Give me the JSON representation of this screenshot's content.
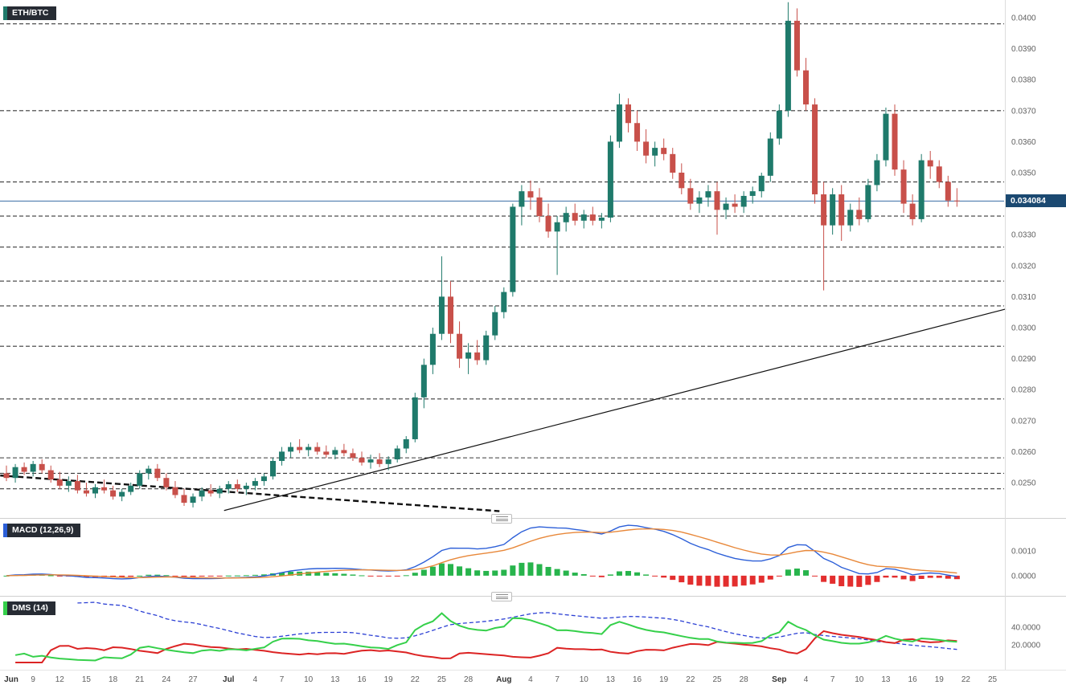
{
  "colors": {
    "up": "#1f7a6b",
    "down": "#c8504a",
    "macd_line": "#2c5fd8",
    "signal_line": "#e8883a",
    "hist_up": "#27b44c",
    "hist_down": "#e32e2e",
    "plus_di": "#35d04a",
    "minus_di": "#dc2424",
    "adx": "#2b3fd4",
    "price_line": "#3a6ea5",
    "price_tag_bg": "#1b4971",
    "level_line": "#3a3a3a",
    "trend_line": "#111111",
    "label_bg": "#272c34",
    "axis_text": "#5f5f5f",
    "chip_symbol": "#1f7a6b",
    "chip_macd": "#2c5fd8",
    "chip_dms": "#35d04a"
  },
  "chart_data": {
    "type": "candlestick",
    "symbol": "ETH/BTC",
    "y_axis": {
      "ticks": [
        "0.0400",
        "0.0390",
        "0.0380",
        "0.0370",
        "0.0360",
        "0.0350",
        "0.0330",
        "0.0320",
        "0.0310",
        "0.0300",
        "0.0290",
        "0.0280",
        "0.0270",
        "0.0260",
        "0.0250"
      ],
      "current_price": 0.034084,
      "current_price_label": "0.034084"
    },
    "x_axis": {
      "labels": [
        {
          "t": "Jun",
          "d": 0,
          "m": true
        },
        {
          "t": "9",
          "d": 3
        },
        {
          "t": "12",
          "d": 6
        },
        {
          "t": "15",
          "d": 9
        },
        {
          "t": "18",
          "d": 12
        },
        {
          "t": "21",
          "d": 15
        },
        {
          "t": "24",
          "d": 18
        },
        {
          "t": "27",
          "d": 21
        },
        {
          "t": "Jul",
          "d": 25,
          "m": true
        },
        {
          "t": "4",
          "d": 28
        },
        {
          "t": "7",
          "d": 31
        },
        {
          "t": "10",
          "d": 34
        },
        {
          "t": "13",
          "d": 37
        },
        {
          "t": "16",
          "d": 40
        },
        {
          "t": "19",
          "d": 43
        },
        {
          "t": "22",
          "d": 46
        },
        {
          "t": "25",
          "d": 49
        },
        {
          "t": "28",
          "d": 52
        },
        {
          "t": "Aug",
          "d": 56,
          "m": true
        },
        {
          "t": "4",
          "d": 59
        },
        {
          "t": "7",
          "d": 62
        },
        {
          "t": "10",
          "d": 65
        },
        {
          "t": "13",
          "d": 68
        },
        {
          "t": "16",
          "d": 71
        },
        {
          "t": "19",
          "d": 74
        },
        {
          "t": "22",
          "d": 77
        },
        {
          "t": "25",
          "d": 80
        },
        {
          "t": "28",
          "d": 83
        },
        {
          "t": "Sep",
          "d": 87,
          "m": true
        },
        {
          "t": "4",
          "d": 90
        },
        {
          "t": "7",
          "d": 93
        },
        {
          "t": "10",
          "d": 96
        },
        {
          "t": "13",
          "d": 99
        },
        {
          "t": "16",
          "d": 102
        },
        {
          "t": "19",
          "d": 105
        },
        {
          "t": "22",
          "d": 108
        },
        {
          "t": "25",
          "d": 111
        }
      ]
    },
    "levels": [
      0.0398,
      0.037,
      0.0347,
      0.0336,
      0.0326,
      0.0315,
      0.0307,
      0.0294,
      0.0277,
      0.0258,
      0.0253,
      0.0248
    ],
    "trendlines": [
      {
        "style": "solid",
        "from": [
          24.5,
          0.0241
        ],
        "to": [
          112.5,
          0.0306
        ]
      },
      {
        "style": "dashed",
        "from": [
          -0.7,
          0.02523
        ],
        "to": [
          55.5,
          0.02408
        ]
      }
    ],
    "indicators": {
      "macd": {
        "label": "MACD (12,26,9)",
        "fast": 12,
        "slow": 26,
        "signal": 9,
        "ticks": [
          "0.0010",
          "0.0000"
        ]
      },
      "dms": {
        "label": "DMS (14)",
        "period": 14,
        "ticks": [
          "40.0000",
          "20.0000"
        ]
      }
    },
    "candles": [
      [
        0.0253,
        0.02555,
        0.02505,
        0.02515
      ],
      [
        0.02515,
        0.0256,
        0.025,
        0.0255
      ],
      [
        0.0255,
        0.02565,
        0.02525,
        0.02535
      ],
      [
        0.02535,
        0.0257,
        0.0252,
        0.0256
      ],
      [
        0.0256,
        0.02575,
        0.0253,
        0.0254
      ],
      [
        0.0254,
        0.02555,
        0.025,
        0.0251
      ],
      [
        0.0251,
        0.02535,
        0.0248,
        0.0249
      ],
      [
        0.0249,
        0.0252,
        0.0247,
        0.02505
      ],
      [
        0.02505,
        0.02525,
        0.02465,
        0.02475
      ],
      [
        0.02475,
        0.025,
        0.02455,
        0.02465
      ],
      [
        0.02465,
        0.02495,
        0.0245,
        0.02485
      ],
      [
        0.02485,
        0.0251,
        0.02465,
        0.02475
      ],
      [
        0.02475,
        0.0249,
        0.02445,
        0.02455
      ],
      [
        0.02455,
        0.0248,
        0.0244,
        0.0247
      ],
      [
        0.0247,
        0.025,
        0.0246,
        0.0249
      ],
      [
        0.0249,
        0.0254,
        0.0248,
        0.0253
      ],
      [
        0.0253,
        0.02555,
        0.0251,
        0.02545
      ],
      [
        0.02545,
        0.0256,
        0.02505,
        0.02515
      ],
      [
        0.02515,
        0.0253,
        0.02475,
        0.02485
      ],
      [
        0.02485,
        0.02505,
        0.0245,
        0.0246
      ],
      [
        0.0246,
        0.0248,
        0.02425,
        0.02435
      ],
      [
        0.02435,
        0.02465,
        0.0242,
        0.02455
      ],
      [
        0.02455,
        0.02485,
        0.0244,
        0.02475
      ],
      [
        0.02475,
        0.02495,
        0.02455,
        0.02465
      ],
      [
        0.02465,
        0.0249,
        0.0245,
        0.0248
      ],
      [
        0.0248,
        0.02505,
        0.02465,
        0.02495
      ],
      [
        0.02495,
        0.0251,
        0.0247,
        0.0248
      ],
      [
        0.0248,
        0.025,
        0.0246,
        0.0249
      ],
      [
        0.0249,
        0.02515,
        0.02475,
        0.02505
      ],
      [
        0.02505,
        0.0253,
        0.0249,
        0.0252
      ],
      [
        0.0252,
        0.0258,
        0.0251,
        0.0257
      ],
      [
        0.0257,
        0.02615,
        0.02555,
        0.026
      ],
      [
        0.026,
        0.0263,
        0.0258,
        0.02615
      ],
      [
        0.02615,
        0.0264,
        0.02595,
        0.02605
      ],
      [
        0.02605,
        0.02625,
        0.02585,
        0.02615
      ],
      [
        0.02615,
        0.0263,
        0.0259,
        0.026
      ],
      [
        0.026,
        0.0262,
        0.0258,
        0.0259
      ],
      [
        0.0259,
        0.02615,
        0.02575,
        0.02605
      ],
      [
        0.02605,
        0.02625,
        0.02585,
        0.02595
      ],
      [
        0.02595,
        0.0261,
        0.0257,
        0.0258
      ],
      [
        0.0258,
        0.026,
        0.02555,
        0.02565
      ],
      [
        0.02565,
        0.0259,
        0.02545,
        0.02575
      ],
      [
        0.02575,
        0.02595,
        0.0255,
        0.0256
      ],
      [
        0.0256,
        0.02585,
        0.0254,
        0.02575
      ],
      [
        0.02575,
        0.0262,
        0.02565,
        0.0261
      ],
      [
        0.0261,
        0.0265,
        0.02595,
        0.0264
      ],
      [
        0.0264,
        0.0279,
        0.0263,
        0.02775
      ],
      [
        0.02775,
        0.029,
        0.0274,
        0.0288
      ],
      [
        0.0288,
        0.03,
        0.0285,
        0.0298
      ],
      [
        0.0298,
        0.0323,
        0.0296,
        0.031
      ],
      [
        0.031,
        0.0315,
        0.0295,
        0.0298
      ],
      [
        0.0298,
        0.0302,
        0.0287,
        0.029
      ],
      [
        0.029,
        0.0295,
        0.0285,
        0.0292
      ],
      [
        0.0292,
        0.0296,
        0.0288,
        0.02895
      ],
      [
        0.02895,
        0.0299,
        0.0288,
        0.02975
      ],
      [
        0.02975,
        0.0307,
        0.0296,
        0.0305
      ],
      [
        0.0305,
        0.0313,
        0.0303,
        0.03115
      ],
      [
        0.03115,
        0.034,
        0.031,
        0.0339
      ],
      [
        0.0339,
        0.0346,
        0.0333,
        0.0344
      ],
      [
        0.0344,
        0.03475,
        0.0338,
        0.0342
      ],
      [
        0.0342,
        0.0345,
        0.0334,
        0.0336
      ],
      [
        0.0336,
        0.034,
        0.0329,
        0.0331
      ],
      [
        0.0331,
        0.0336,
        0.0317,
        0.0334
      ],
      [
        0.0334,
        0.0339,
        0.0331,
        0.0337
      ],
      [
        0.0337,
        0.034,
        0.0333,
        0.03345
      ],
      [
        0.03345,
        0.0338,
        0.0332,
        0.03365
      ],
      [
        0.03365,
        0.0339,
        0.0333,
        0.03345
      ],
      [
        0.03345,
        0.0337,
        0.0332,
        0.03355
      ],
      [
        0.03355,
        0.0362,
        0.0334,
        0.036
      ],
      [
        0.036,
        0.03755,
        0.0358,
        0.0372
      ],
      [
        0.0372,
        0.0374,
        0.0363,
        0.0366
      ],
      [
        0.0366,
        0.037,
        0.0357,
        0.036
      ],
      [
        0.036,
        0.0364,
        0.0353,
        0.03555
      ],
      [
        0.03555,
        0.036,
        0.0352,
        0.0358
      ],
      [
        0.0358,
        0.0361,
        0.0354,
        0.0356
      ],
      [
        0.0356,
        0.0358,
        0.0348,
        0.035
      ],
      [
        0.035,
        0.0353,
        0.0343,
        0.0345
      ],
      [
        0.0345,
        0.0348,
        0.0338,
        0.034
      ],
      [
        0.034,
        0.0344,
        0.0337,
        0.0342
      ],
      [
        0.0342,
        0.0346,
        0.0339,
        0.0344
      ],
      [
        0.0344,
        0.0347,
        0.033,
        0.0338
      ],
      [
        0.0338,
        0.0342,
        0.0335,
        0.034
      ],
      [
        0.034,
        0.0343,
        0.0337,
        0.0339
      ],
      [
        0.0339,
        0.0344,
        0.0337,
        0.03425
      ],
      [
        0.03425,
        0.03455,
        0.034,
        0.0344
      ],
      [
        0.0344,
        0.035,
        0.0342,
        0.0349
      ],
      [
        0.0349,
        0.0363,
        0.0347,
        0.0361
      ],
      [
        0.0361,
        0.0372,
        0.0359,
        0.037
      ],
      [
        0.037,
        0.0405,
        0.0368,
        0.0399
      ],
      [
        0.0399,
        0.0403,
        0.0381,
        0.0383
      ],
      [
        0.0383,
        0.0387,
        0.037,
        0.0372
      ],
      [
        0.0372,
        0.0374,
        0.034,
        0.0343
      ],
      [
        0.0343,
        0.0347,
        0.0312,
        0.0333
      ],
      [
        0.0333,
        0.0345,
        0.033,
        0.0343
      ],
      [
        0.0343,
        0.0346,
        0.0328,
        0.0333
      ],
      [
        0.0333,
        0.034,
        0.0331,
        0.0338
      ],
      [
        0.0338,
        0.0342,
        0.0333,
        0.0335
      ],
      [
        0.0335,
        0.0348,
        0.0334,
        0.0346
      ],
      [
        0.0346,
        0.0356,
        0.0344,
        0.0354
      ],
      [
        0.0354,
        0.0371,
        0.0352,
        0.0369
      ],
      [
        0.0369,
        0.0372,
        0.0349,
        0.0351
      ],
      [
        0.0351,
        0.0354,
        0.0337,
        0.034
      ],
      [
        0.034,
        0.0343,
        0.0333,
        0.0335
      ],
      [
        0.0335,
        0.0356,
        0.0334,
        0.0354
      ],
      [
        0.0354,
        0.0357,
        0.0348,
        0.0352
      ],
      [
        0.0352,
        0.0354,
        0.0345,
        0.0347
      ],
      [
        0.0347,
        0.0349,
        0.0339,
        0.0341
      ],
      [
        0.0341,
        0.0345,
        0.0339,
        0.03408
      ]
    ]
  }
}
